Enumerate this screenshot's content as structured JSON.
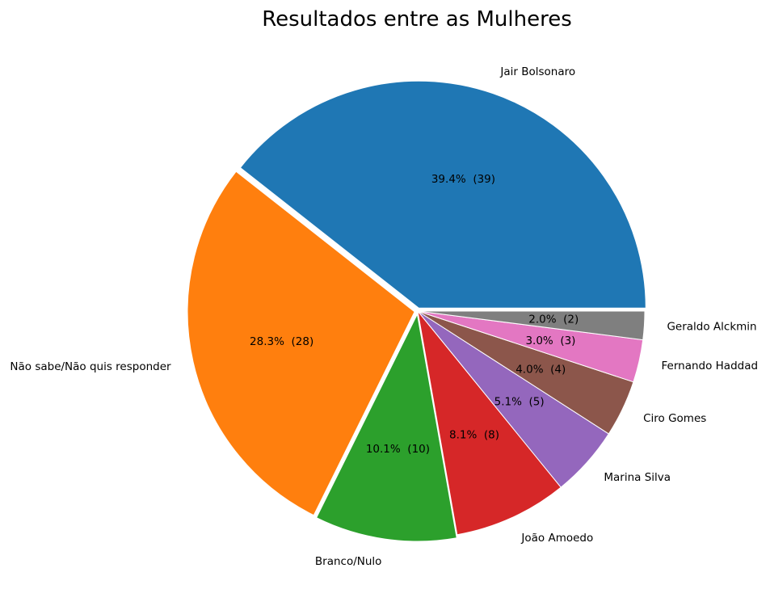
{
  "chart_data": {
    "type": "pie",
    "title": "Resultados entre as Mulheres",
    "start_angle_deg": 0,
    "direction": "counterclockwise",
    "edge_color": "#ffffff",
    "slices": [
      {
        "label": "Jair Bolsonaro",
        "value": 39,
        "percent_label": "39.4%  (39)",
        "color": "#1f77b4",
        "exploded": true
      },
      {
        "label": "Não sabe/Não quis responder",
        "value": 28,
        "percent_label": "28.3%  (28)",
        "color": "#ff7f0e",
        "exploded": true
      },
      {
        "label": "Branco/Nulo",
        "value": 10,
        "percent_label": "10.1%  (10)",
        "color": "#2ca02c",
        "exploded": true
      },
      {
        "label": "João Amoedo",
        "value": 8,
        "percent_label": "8.1%  (8)",
        "color": "#d62728",
        "exploded": false
      },
      {
        "label": "Marina Silva",
        "value": 5,
        "percent_label": "5.1%  (5)",
        "color": "#9467bd",
        "exploded": false
      },
      {
        "label": "Ciro Gomes",
        "value": 4,
        "percent_label": "4.0%  (4)",
        "color": "#8c564b",
        "exploded": false
      },
      {
        "label": "Fernando Haddad",
        "value": 3,
        "percent_label": "3.0%  (3)",
        "color": "#e377c2",
        "exploded": false
      },
      {
        "label": "Geraldo Alckmin",
        "value": 2,
        "percent_label": "2.0%  (2)",
        "color": "#7f7f7f",
        "exploded": false
      }
    ]
  }
}
